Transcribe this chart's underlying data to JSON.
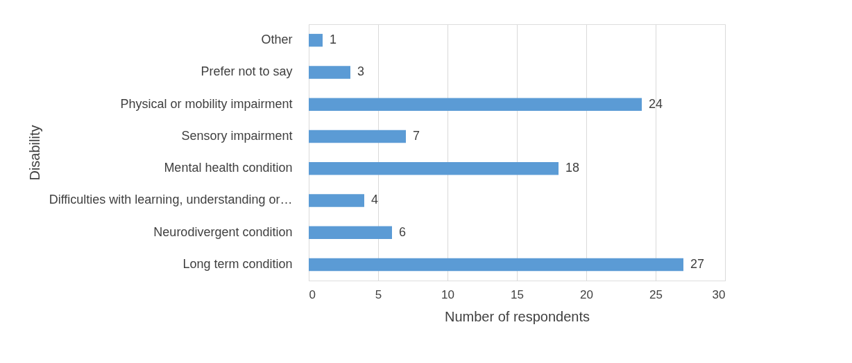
{
  "chart_data": {
    "type": "bar",
    "orientation": "horizontal",
    "xlabel": "Number of respondents",
    "ylabel": "Disability",
    "categories": [
      "Other",
      "Prefer not to say",
      "Physical or mobility impairment",
      "Sensory impairment",
      "Mental health condition",
      "Difficulties with learning, understanding or…",
      "Neurodivergent condition",
      "Long term condition"
    ],
    "values": [
      1,
      3,
      24,
      7,
      18,
      4,
      6,
      27
    ],
    "color": "#5b9bd5",
    "xlim": [
      0,
      30
    ],
    "xticks": [
      0,
      5,
      10,
      15,
      20,
      25,
      30
    ],
    "grid": "x",
    "data_labels": true
  }
}
